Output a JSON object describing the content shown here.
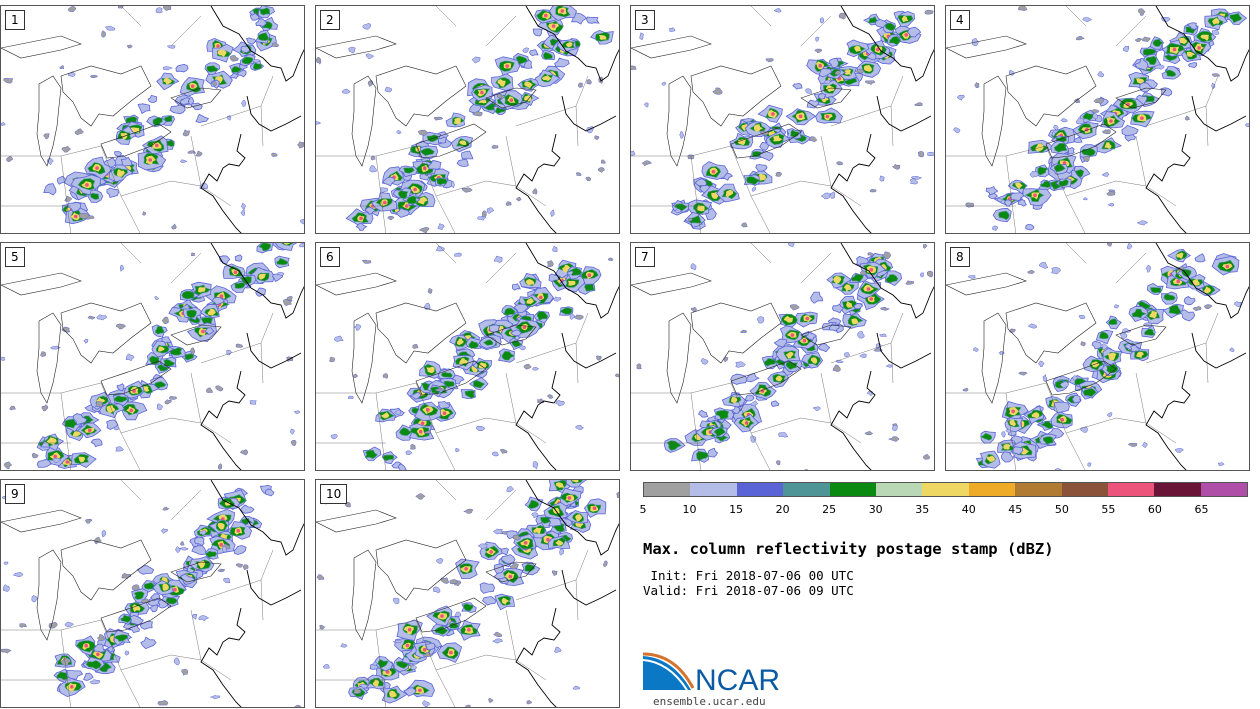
{
  "panels": [
    {
      "label": "1"
    },
    {
      "label": "2"
    },
    {
      "label": "3"
    },
    {
      "label": "4"
    },
    {
      "label": "5"
    },
    {
      "label": "6"
    },
    {
      "label": "7"
    },
    {
      "label": "8"
    },
    {
      "label": "9"
    },
    {
      "label": "10"
    }
  ],
  "colorbar": {
    "colors": [
      "#a0a0a0",
      "#b4bde8",
      "#5b64d6",
      "#4f9496",
      "#0b8a11",
      "#bad8b5",
      "#efd764",
      "#eeab27",
      "#b27b33",
      "#8b5339",
      "#ed547c",
      "#6a1538",
      "#b04fa8"
    ],
    "ticks": [
      "5",
      "10",
      "15",
      "20",
      "25",
      "30",
      "35",
      "40",
      "45",
      "50",
      "55",
      "60",
      "65"
    ]
  },
  "title": "Max. column reflectivity postage stamp (dBZ)",
  "init": " Init: Fri 2018-07-06 00 UTC",
  "valid": "Valid: Fri 2018-07-06 09 UTC",
  "logo": {
    "text": "NCAR",
    "url": "ensemble.ucar.edu",
    "color": "#0b5aa4"
  }
}
